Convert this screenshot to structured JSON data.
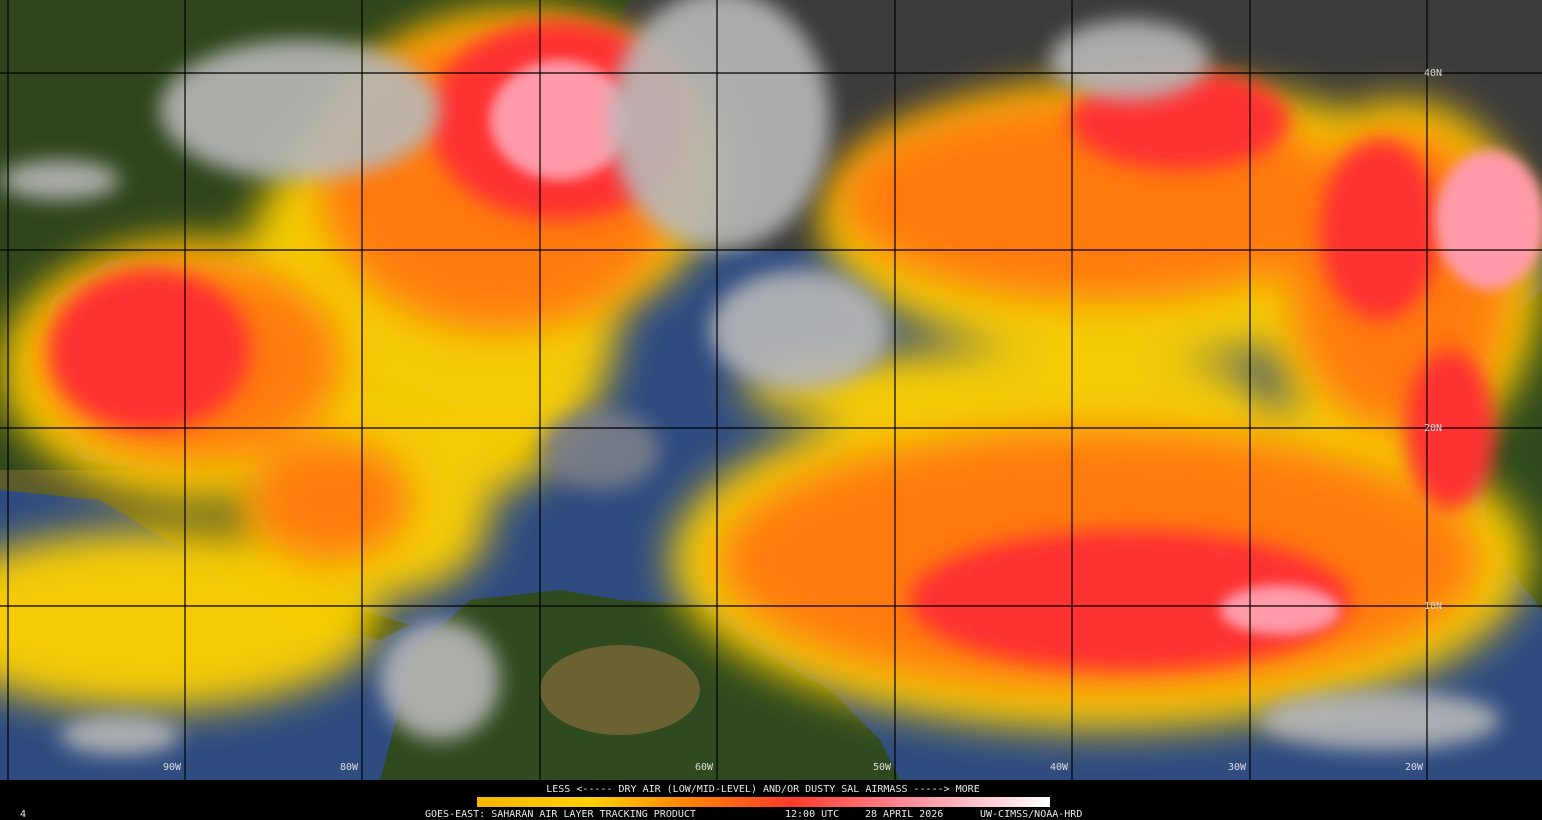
{
  "map": {
    "longitude_labels": [
      "90W",
      "80W",
      "60W",
      "50W",
      "40W",
      "30W",
      "20W"
    ],
    "latitude_labels": [
      "40N",
      "20N",
      "10N"
    ]
  },
  "colorbar": {
    "label": "LESS <----- DRY AIR (LOW/MID-LEVEL) AND/OR DUSTY SAL AIRMASS -----> MORE"
  },
  "footer": {
    "product": "GOES-EAST: SAHARAN AIR LAYER TRACKING PRODUCT",
    "time": "12:00 UTC",
    "date": "28 APRIL 2026",
    "credit": "UW-CIMSS/NOAA-HRD",
    "corner": "4"
  }
}
